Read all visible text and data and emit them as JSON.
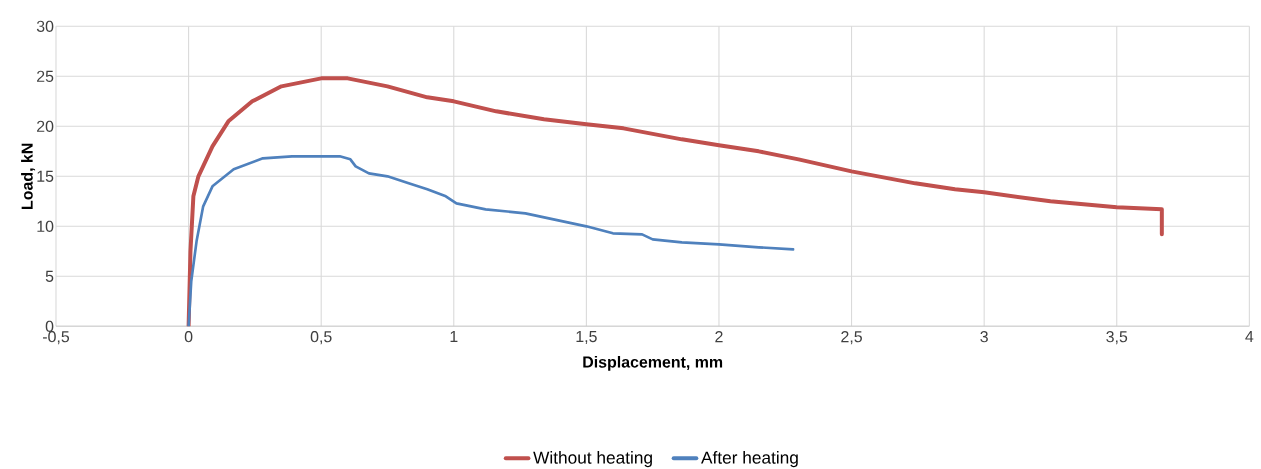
{
  "chart_data": {
    "type": "line",
    "xlabel": "Displacement, mm",
    "ylabel": "Load, kN",
    "xlim": [
      -0.5,
      4
    ],
    "ylim": [
      0,
      30
    ],
    "xticks": [
      {
        "value": -0.5,
        "label": "-0,5"
      },
      0,
      {
        "value": 0.5,
        "label": "0,5"
      },
      1,
      {
        "value": 1.5,
        "label": "1,5"
      },
      2,
      {
        "value": 2.5,
        "label": "2,5"
      },
      3,
      {
        "value": 3.5,
        "label": "3,5"
      },
      4
    ],
    "yticks": [
      0,
      5,
      10,
      15,
      20,
      25,
      30
    ],
    "grid": true,
    "legend": "bottom",
    "marker": "none",
    "line_style": "solid",
    "series": [
      {
        "name": "Without heating",
        "color": "#c0504d",
        "x": [
          0,
          0.007,
          0.018,
          0.037,
          0.09,
          0.15,
          0.24,
          0.35,
          0.5,
          0.6,
          0.75,
          0.9,
          1,
          1.16,
          1.34,
          1.5,
          1.64,
          1.86,
          2,
          2.15,
          2.3,
          2.5,
          2.74,
          2.89,
          3,
          3.25,
          3.5,
          3.67,
          3.67
        ],
        "values": [
          0,
          7.5,
          13,
          15,
          18,
          20.5,
          22.5,
          24,
          24.8,
          24.8,
          24,
          22.9,
          22.5,
          21.5,
          20.7,
          20.2,
          19.8,
          18.7,
          18.1,
          17.5,
          16.7,
          15.5,
          14.3,
          13.7,
          13.4,
          12.5,
          11.9,
          11.7,
          9.2
        ]
      },
      {
        "name": "After heating",
        "color": "#4f81bd",
        "x": [
          0,
          0.01,
          0.03,
          0.055,
          0.09,
          0.17,
          0.28,
          0.39,
          0.57,
          0.61,
          0.63,
          0.68,
          0.75,
          0.83,
          0.9,
          0.97,
          1.01,
          1.12,
          1.27,
          1.5,
          1.6,
          1.71,
          1.75,
          1.86,
          2,
          2.15,
          2.28
        ],
        "values": [
          0,
          4.5,
          8.5,
          12,
          14,
          15.7,
          16.8,
          17,
          17,
          16.7,
          16,
          15.3,
          15,
          14.3,
          13.7,
          13,
          12.3,
          11.7,
          11.3,
          10,
          9.3,
          9.2,
          8.7,
          8.4,
          8.2,
          7.9,
          7.7
        ]
      }
    ]
  }
}
